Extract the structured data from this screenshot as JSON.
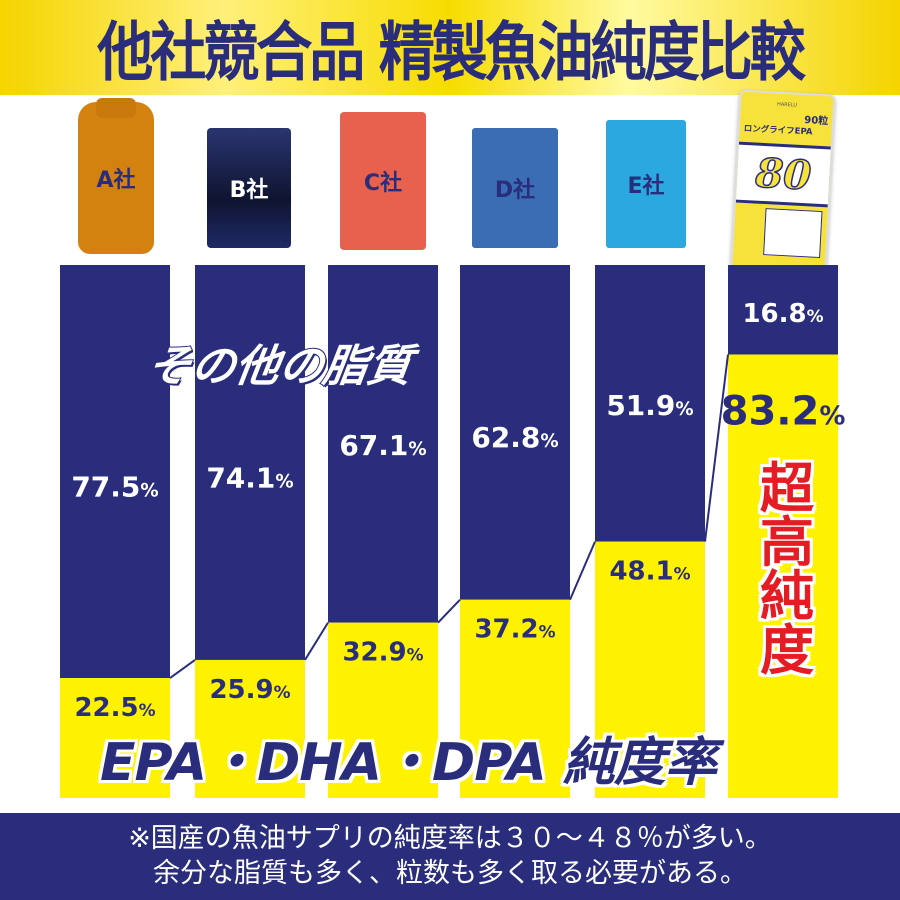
{
  "header": {
    "title": "他社競合品 精製魚油純度比較"
  },
  "product_package": {
    "brand": "HARELU",
    "name": "ロングライフEPA",
    "count": "90粒",
    "badge": "80"
  },
  "overlays": {
    "other_lipids": "その他の脂質",
    "purity_label": "EPA・DHA・DPA 純度率",
    "ultra_purity": "超高純度"
  },
  "footer": {
    "line1": "※国産の魚油サプリの純度率は３０〜４８％が多い。",
    "line2": "余分な脂質も多く、粒数も多く取る必要がある。"
  },
  "colors": {
    "navy": "#2a2d7c",
    "yellow": "#fff200",
    "red": "#e51c23"
  },
  "chart_data": {
    "type": "bar",
    "stacked": true,
    "categories": [
      "A社",
      "B社",
      "C社",
      "D社",
      "E社",
      ""
    ],
    "series": [
      {
        "name": "EPA・DHA・DPA 純度率",
        "color": "#fff200",
        "values": [
          22.5,
          25.9,
          32.9,
          37.2,
          48.1,
          83.2
        ]
      },
      {
        "name": "その他の脂質",
        "color": "#2a2d7c",
        "values": [
          77.5,
          74.1,
          67.1,
          62.8,
          51.9,
          16.8
        ]
      }
    ],
    "ylim": [
      0,
      100
    ],
    "unit": "%"
  }
}
